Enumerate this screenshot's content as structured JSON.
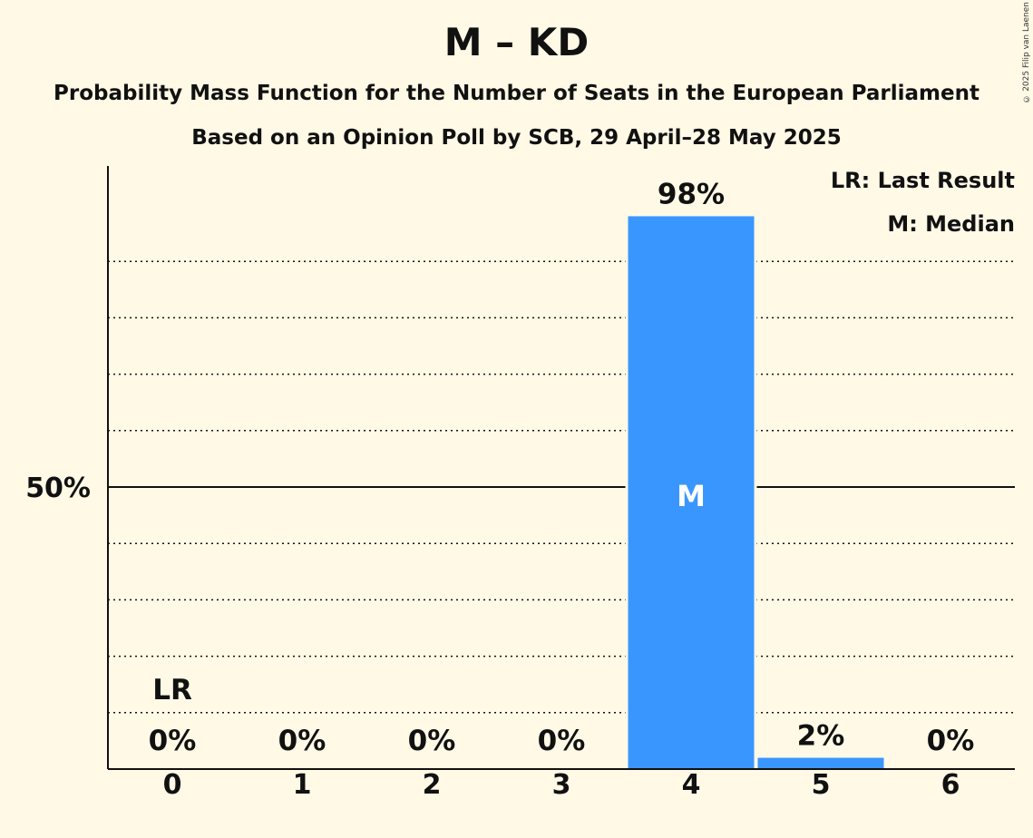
{
  "header": {
    "title": "M – KD",
    "subtitle": "Probability Mass Function for the Number of Seats in the European Parliament",
    "subtitle2": "Based on an Opinion Poll by SCB, 29 April–28 May 2025",
    "copyright": "© 2025 Filip van Laenen"
  },
  "legend": {
    "last_result": "LR: Last Result",
    "median": "M: Median"
  },
  "chart_data": {
    "type": "bar",
    "categories": [
      "0",
      "1",
      "2",
      "3",
      "4",
      "5",
      "6"
    ],
    "values": [
      0,
      0,
      0,
      0,
      98,
      2,
      0
    ],
    "value_labels": [
      "0%",
      "0%",
      "0%",
      "0%",
      "98%",
      "2%",
      "0%"
    ],
    "ylim": [
      0,
      100
    ],
    "y_ticks": [
      {
        "value": 50,
        "label": "50%"
      }
    ],
    "minor_gridlines": [
      10,
      20,
      30,
      40,
      60,
      70,
      80,
      90
    ],
    "last_result": {
      "category": "0",
      "label": "LR"
    },
    "median": {
      "category": "4",
      "label": "M"
    },
    "colors": {
      "bar": "#3a96ff",
      "background": "#fff9e6",
      "axis": "#111111"
    }
  }
}
